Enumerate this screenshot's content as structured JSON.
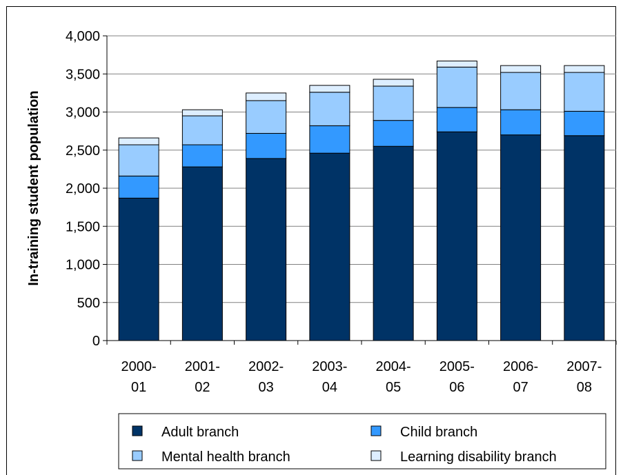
{
  "chart_data": {
    "type": "bar",
    "stacked": true,
    "categories": [
      "2000-01",
      "2001-02",
      "2002-03",
      "2003-04",
      "2004-05",
      "2005-06",
      "2006-07",
      "2007-08"
    ],
    "category_lines": [
      [
        "2000-",
        "01"
      ],
      [
        "2001-",
        "02"
      ],
      [
        "2002-",
        "03"
      ],
      [
        "2003-",
        "04"
      ],
      [
        "2004-",
        "05"
      ],
      [
        "2005-",
        "06"
      ],
      [
        "2006-",
        "07"
      ],
      [
        "2007-",
        "08"
      ]
    ],
    "series": [
      {
        "name": "Adult branch",
        "color": "#003366",
        "values": [
          1870,
          2280,
          2390,
          2460,
          2550,
          2740,
          2700,
          2690
        ]
      },
      {
        "name": "Child branch",
        "color": "#3399FF",
        "values": [
          290,
          290,
          330,
          360,
          340,
          320,
          330,
          320
        ]
      },
      {
        "name": "Mental health branch",
        "color": "#99CCFF",
        "values": [
          410,
          380,
          430,
          440,
          450,
          530,
          490,
          510
        ]
      },
      {
        "name": "Learning disability branch",
        "color": "#DDEEFF",
        "values": [
          90,
          80,
          100,
          90,
          90,
          80,
          90,
          90
        ]
      }
    ],
    "title": "",
    "xlabel": "",
    "ylabel": "In-training student population",
    "ylim": [
      0,
      4000
    ],
    "ytick_values": [
      0,
      500,
      1000,
      1500,
      2000,
      2500,
      3000,
      3500,
      4000
    ],
    "ytick_labels": [
      "0",
      "500",
      "1,000",
      "1,500",
      "2,000",
      "2,500",
      "3,000",
      "3,500",
      "4,000"
    ],
    "grid": "horizontal",
    "legend": "bottom"
  }
}
